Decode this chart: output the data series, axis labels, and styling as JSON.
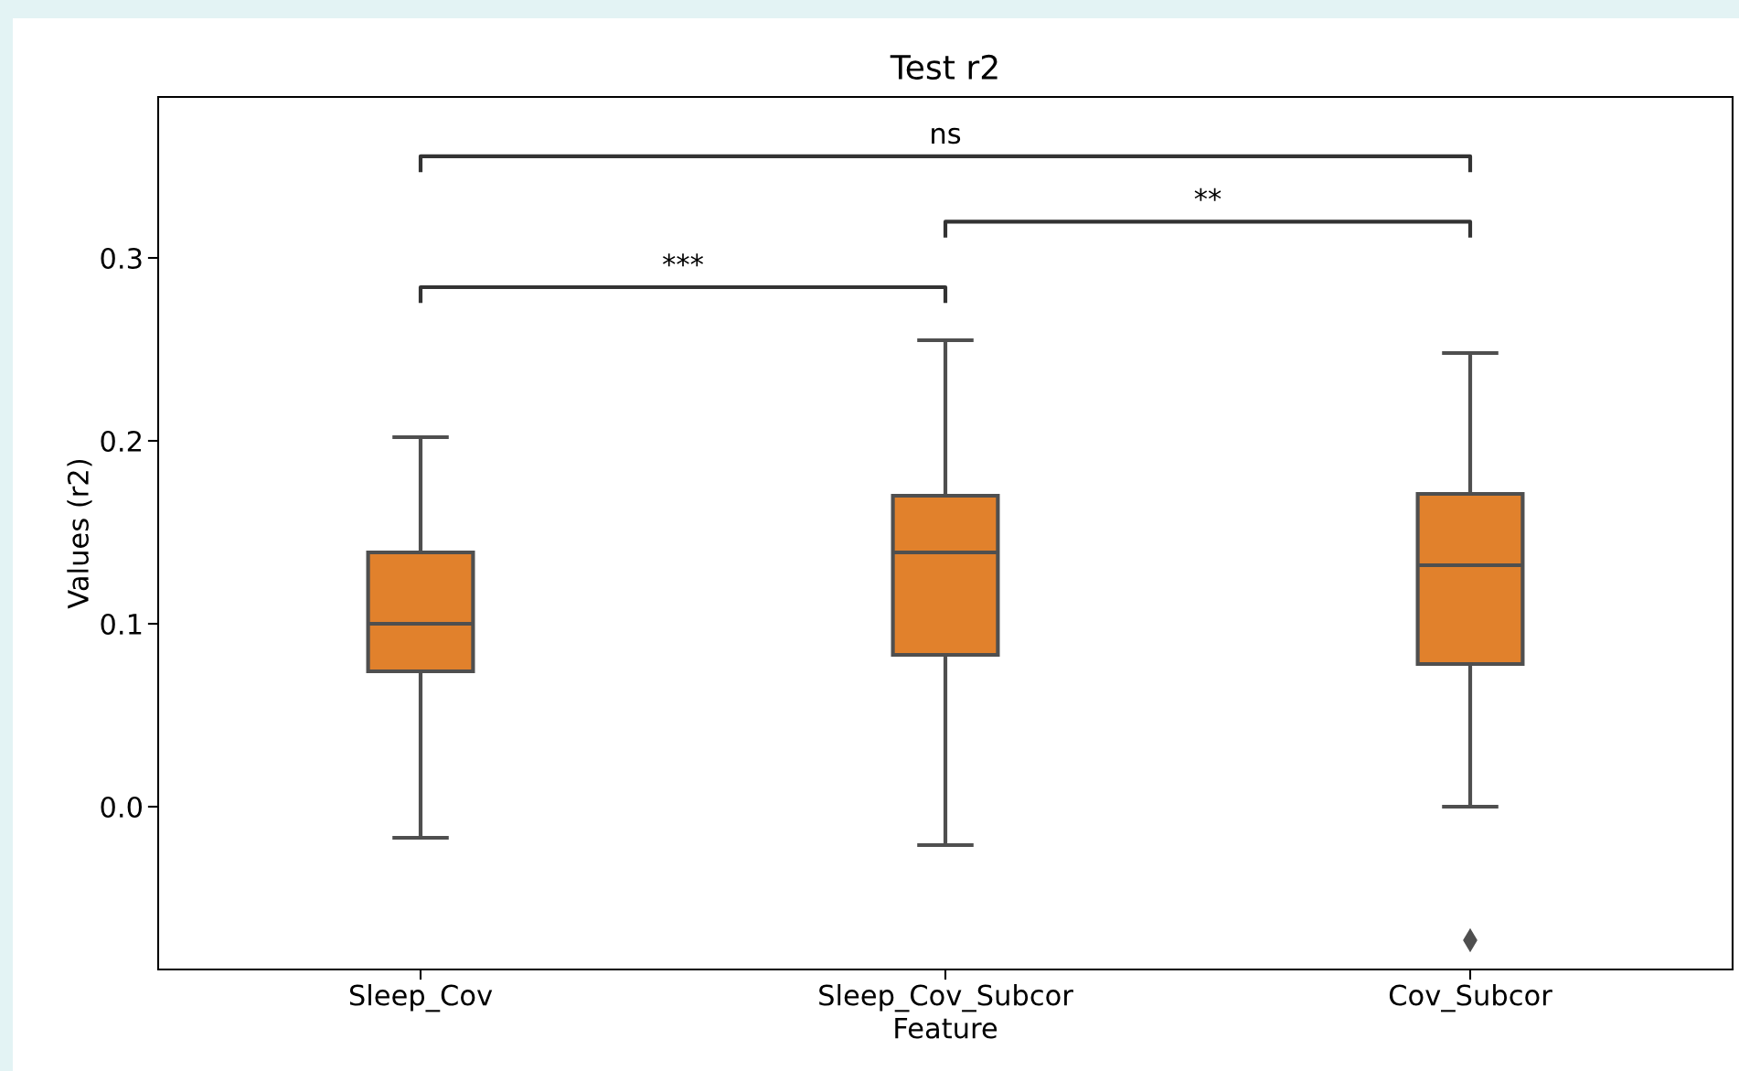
{
  "chart_data": {
    "type": "box",
    "title": "Test r2",
    "xlabel": "Feature",
    "ylabel": "Values (r2)",
    "categories": [
      "Sleep_Cov",
      "Sleep_Cov_Subcor",
      "Cov_Subcor"
    ],
    "series": [
      {
        "color": "#e1812c",
        "boxes": [
          {
            "low": -0.017,
            "q1": 0.074,
            "median": 0.1,
            "q3": 0.139,
            "high": 0.202
          },
          {
            "low": -0.021,
            "q1": 0.083,
            "median": 0.139,
            "q3": 0.17,
            "high": 0.255
          },
          {
            "low": 0.0,
            "q1": 0.078,
            "median": 0.132,
            "q3": 0.171,
            "high": 0.248,
            "outliers": [
              -0.073
            ]
          }
        ]
      }
    ],
    "ylim": [
      -0.089,
      0.388
    ],
    "yticks": [
      {
        "value": 0,
        "label": "0.0"
      },
      0.1,
      0.2,
      0.3
    ],
    "annotations": [
      "***",
      "**",
      "ns"
    ],
    "grid": false,
    "legend": false
  }
}
